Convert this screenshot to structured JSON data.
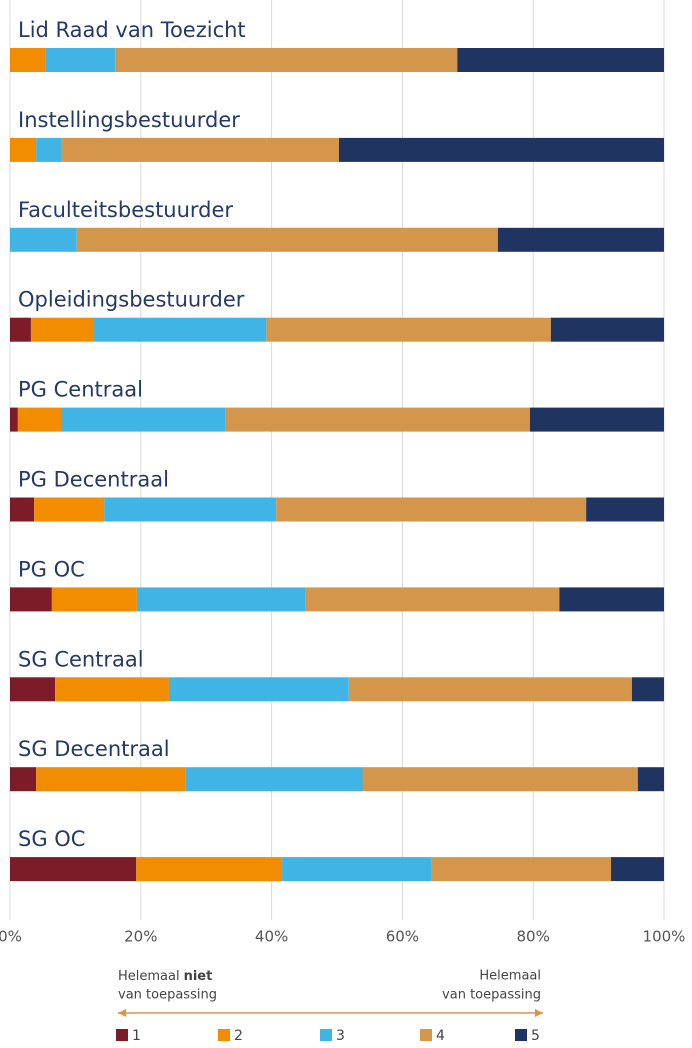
{
  "chart_data": {
    "type": "bar",
    "orientation": "horizontal",
    "stacked": true,
    "categories": [
      "Lid Raad van Toezicht",
      "Instellingsbestuurder",
      "Faculteitsbestuurder",
      "Opleidingsbestuurder",
      "PG Centraal",
      "PG Decentraal",
      "PG OC",
      "SG Centraal",
      "SG Decentraal",
      "SG OC"
    ],
    "series": [
      {
        "name": "1",
        "color": "#7b1c28",
        "values": [
          0,
          0,
          0,
          3.2,
          1.2,
          3.7,
          6.4,
          6.9,
          4.0,
          19.3
        ]
      },
      {
        "name": "2",
        "color": "#f28c00",
        "values": [
          5.4,
          4.0,
          0,
          9.5,
          6.6,
          10.7,
          13.0,
          17.4,
          22.8,
          22.3
        ]
      },
      {
        "name": "3",
        "color": "#41b4e6",
        "values": [
          10.7,
          3.8,
          10.2,
          26.5,
          25.2,
          26.3,
          25.8,
          27.5,
          27.1,
          22.9
        ]
      },
      {
        "name": "4",
        "color": "#d4964a",
        "values": [
          52.3,
          42.5,
          64.4,
          43.5,
          46.5,
          47.4,
          38.8,
          43.3,
          42.1,
          27.4
        ]
      },
      {
        "name": "5",
        "color": "#1f3460",
        "values": [
          31.6,
          49.7,
          25.4,
          17.3,
          20.5,
          11.9,
          16.0,
          4.9,
          4.0,
          8.1
        ]
      }
    ],
    "xlim": [
      0,
      100
    ],
    "xticks": [
      {
        "value": 0,
        "label": "0%"
      },
      {
        "value": 20,
        "label": "20%"
      },
      {
        "value": 40,
        "label": "40%"
      },
      {
        "value": 60,
        "label": "60%"
      },
      {
        "value": 80,
        "label": "80%"
      },
      {
        "value": 100,
        "label": "100%"
      }
    ],
    "grid": true,
    "legend": "bottom",
    "annotations": {
      "left": {
        "line1": "Helemaal",
        "bold": "niet",
        "line2": "van toepassing"
      },
      "right": {
        "line1": "Helemaal",
        "line2": "van toepassing"
      }
    }
  }
}
